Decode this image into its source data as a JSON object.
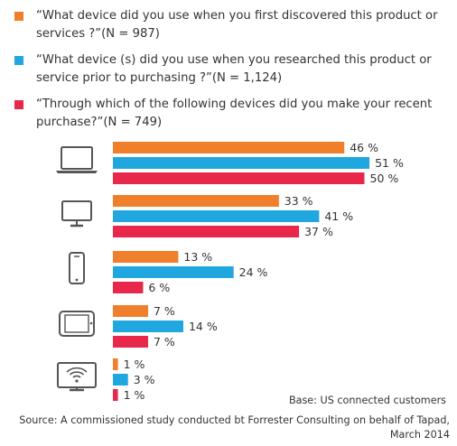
{
  "chart_data": {
    "type": "bar",
    "orientation": "horizontal",
    "categories": [
      "laptop-icon",
      "desktop-monitor-icon",
      "smartphone-icon",
      "tablet-icon",
      "connected-tv-icon"
    ],
    "series": [
      {
        "name": "“What device did you use when you first discovered this product or services ?”(N = 987)",
        "color": "#f07f2b",
        "values": [
          46,
          33,
          13,
          7,
          1
        ],
        "labels": [
          "46 %",
          "33 %",
          "13 %",
          "7 %",
          "1 %"
        ]
      },
      {
        "name": "“What device (s) did you use when you researched this product or service prior to purchasing ?”(N = 1,124)",
        "color": "#21a7e0",
        "values": [
          51,
          41,
          24,
          14,
          3
        ],
        "labels": [
          "51 %",
          "41 %",
          "24 %",
          "14 %",
          "3 %"
        ]
      },
      {
        "name": "“Through which of the following devices did you make your recent purchase?”(N = 749)",
        "color": "#e8284a",
        "values": [
          50,
          37,
          6,
          7,
          1
        ],
        "labels": [
          "50 %",
          "37 %",
          "6 %",
          "7 %",
          "1 %"
        ]
      }
    ],
    "xlim": [
      0,
      51
    ]
  },
  "footer": {
    "base": "Base: US connected customers",
    "source": "Source: A commissioned study conducted bt Forrester  Consulting on behalf of Tapad, March 2014"
  },
  "colors": {
    "icon": "#555555"
  }
}
